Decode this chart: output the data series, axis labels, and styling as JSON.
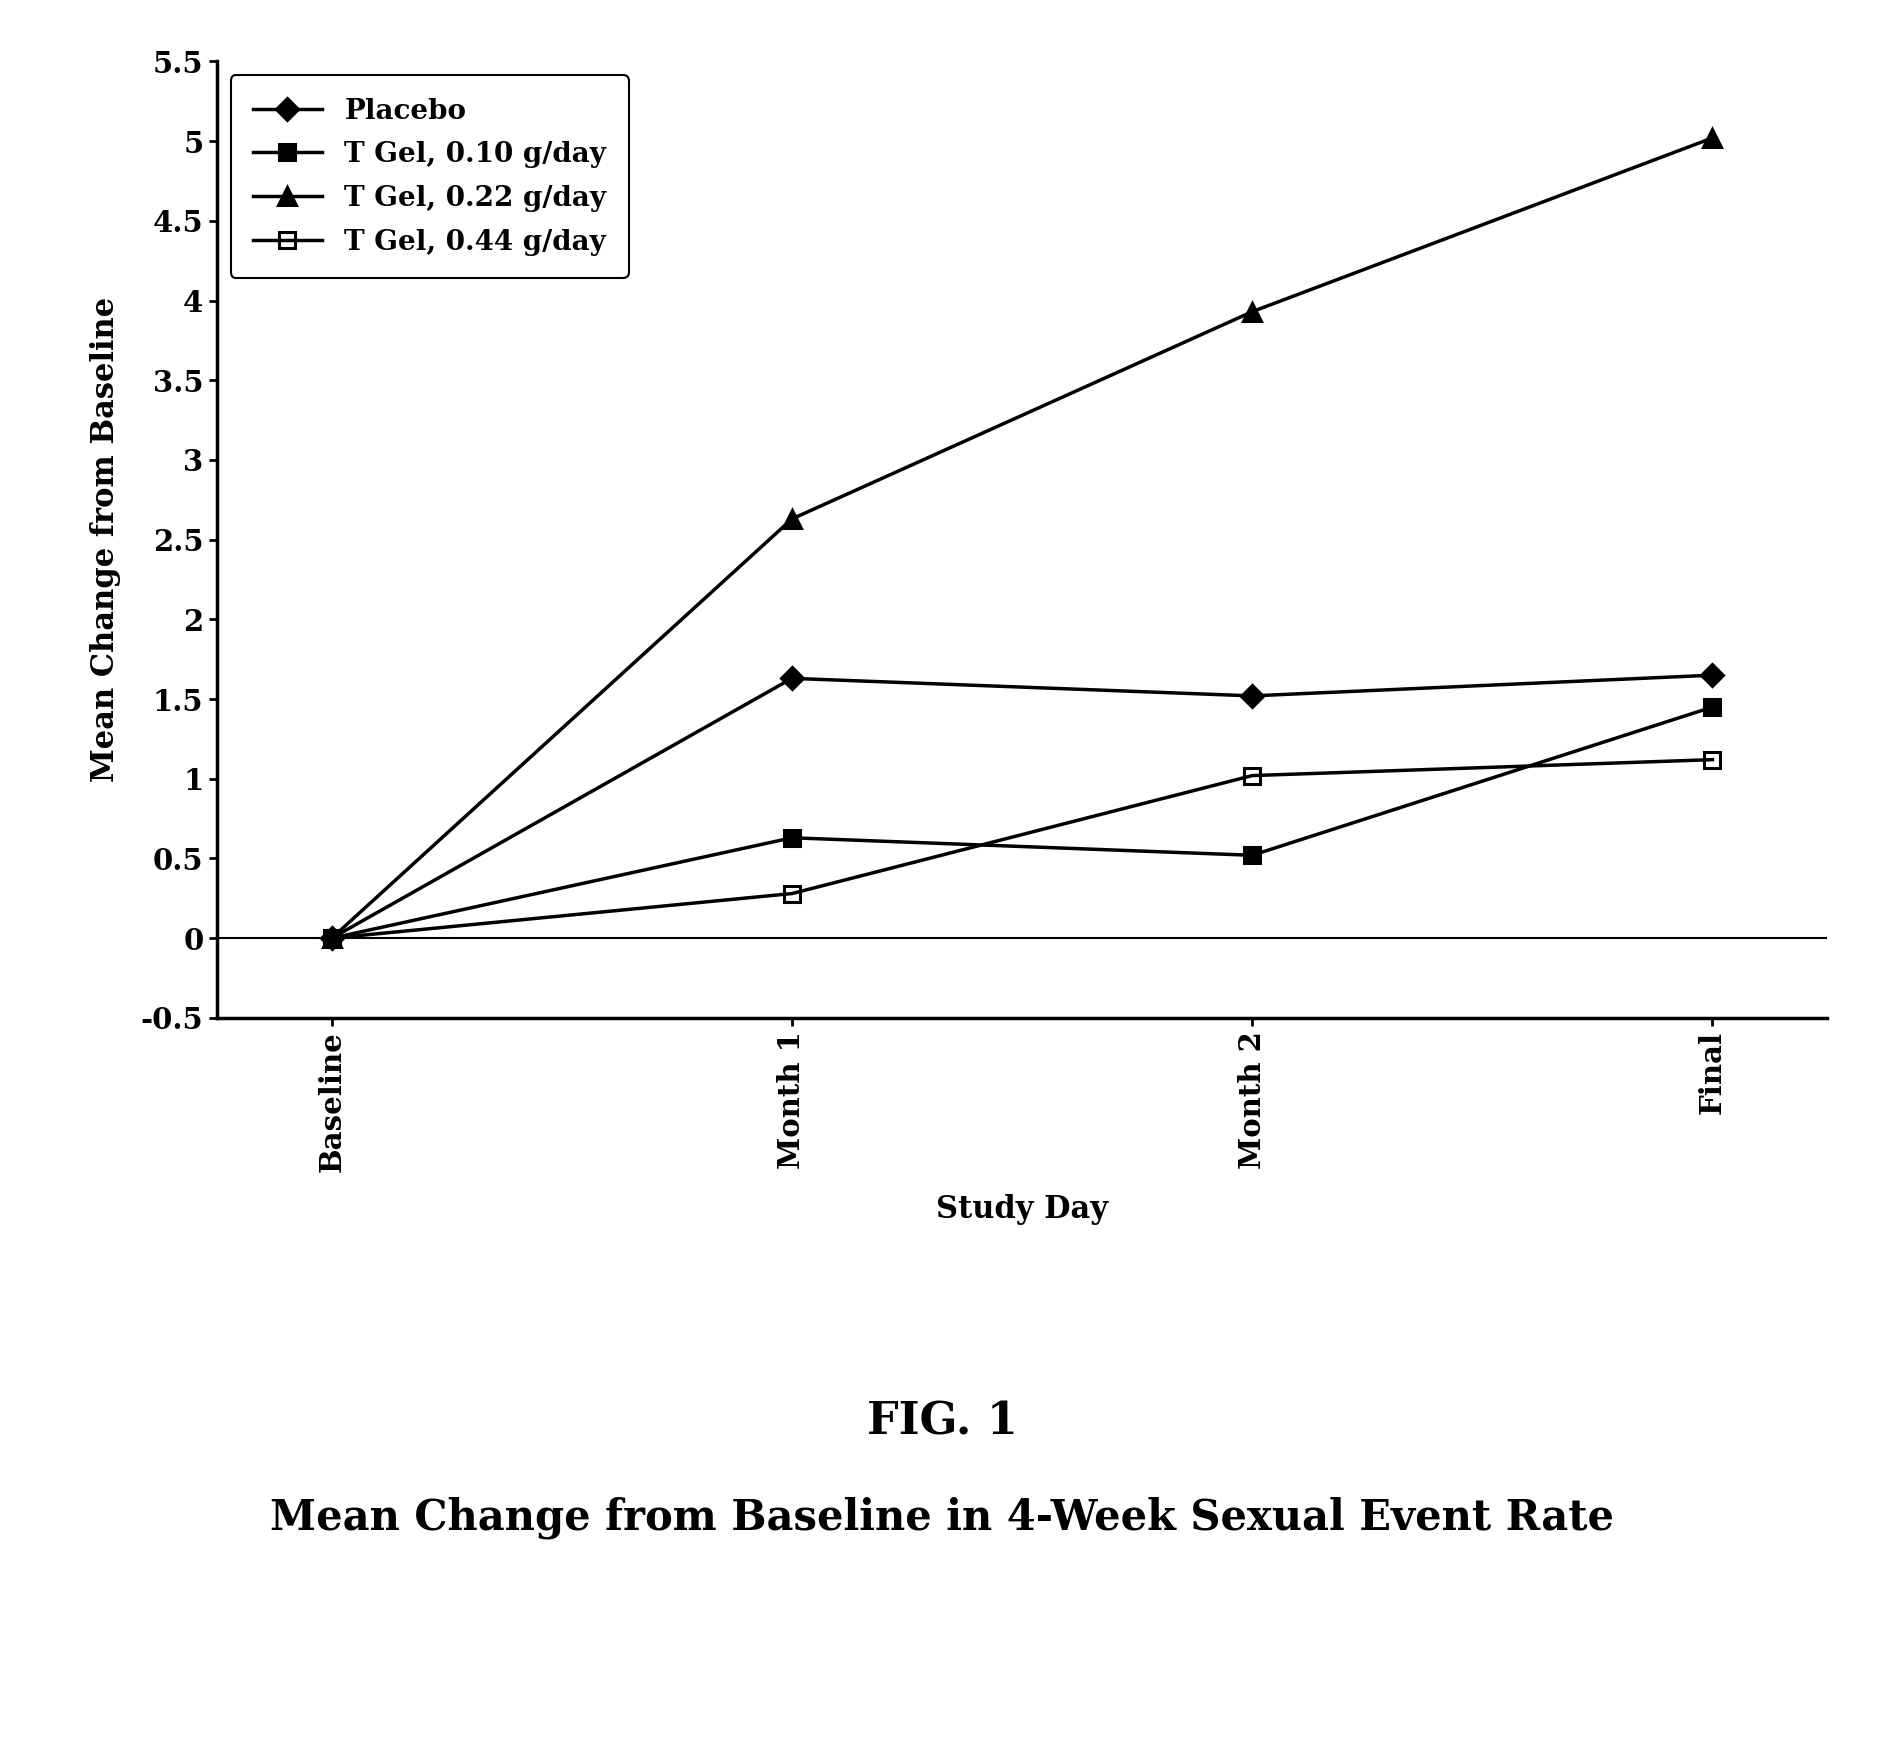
{
  "x_positions": [
    0,
    1,
    2,
    3
  ],
  "x_labels": [
    "Baseline",
    "Month 1",
    "Month 2",
    "Final"
  ],
  "series": [
    {
      "label": "Placebo",
      "values": [
        0,
        1.63,
        1.52,
        1.65
      ],
      "marker": "D",
      "marker_size": 11,
      "fillstyle": "full",
      "linestyle": "-",
      "color": "black"
    },
    {
      "label": "T Gel, 0.10 g/day",
      "values": [
        0,
        0.63,
        0.52,
        1.45
      ],
      "marker": "s",
      "marker_size": 11,
      "fillstyle": "full",
      "linestyle": "-",
      "color": "black"
    },
    {
      "label": "T Gel, 0.22 g/day",
      "values": [
        0,
        2.63,
        3.93,
        5.02
      ],
      "marker": "^",
      "marker_size": 13,
      "fillstyle": "full",
      "linestyle": "-",
      "color": "black"
    },
    {
      "label": "T Gel, 0.44 g/day",
      "values": [
        0,
        0.28,
        1.02,
        1.12
      ],
      "marker": "s",
      "marker_size": 11,
      "fillstyle": "none",
      "linestyle": "-",
      "color": "black"
    }
  ],
  "ylim": [
    -0.5,
    5.5
  ],
  "yticks": [
    -0.5,
    0,
    0.5,
    1,
    1.5,
    2,
    2.5,
    3,
    3.5,
    4,
    4.5,
    5,
    5.5
  ],
  "ytick_labels": [
    "-0.5",
    "0",
    "0.5",
    "1",
    "1.5",
    "2",
    "2.5",
    "3",
    "3.5",
    "4",
    "4.5",
    "5",
    "5.5"
  ],
  "ylabel": "Mean Change from Baseline",
  "xlabel": "Study Day",
  "fig_title": "FIG. 1",
  "fig_subtitle": "Mean Change from Baseline in 4-Week Sexual Event Rate",
  "background_color": "#ffffff",
  "linewidth": 2.5
}
